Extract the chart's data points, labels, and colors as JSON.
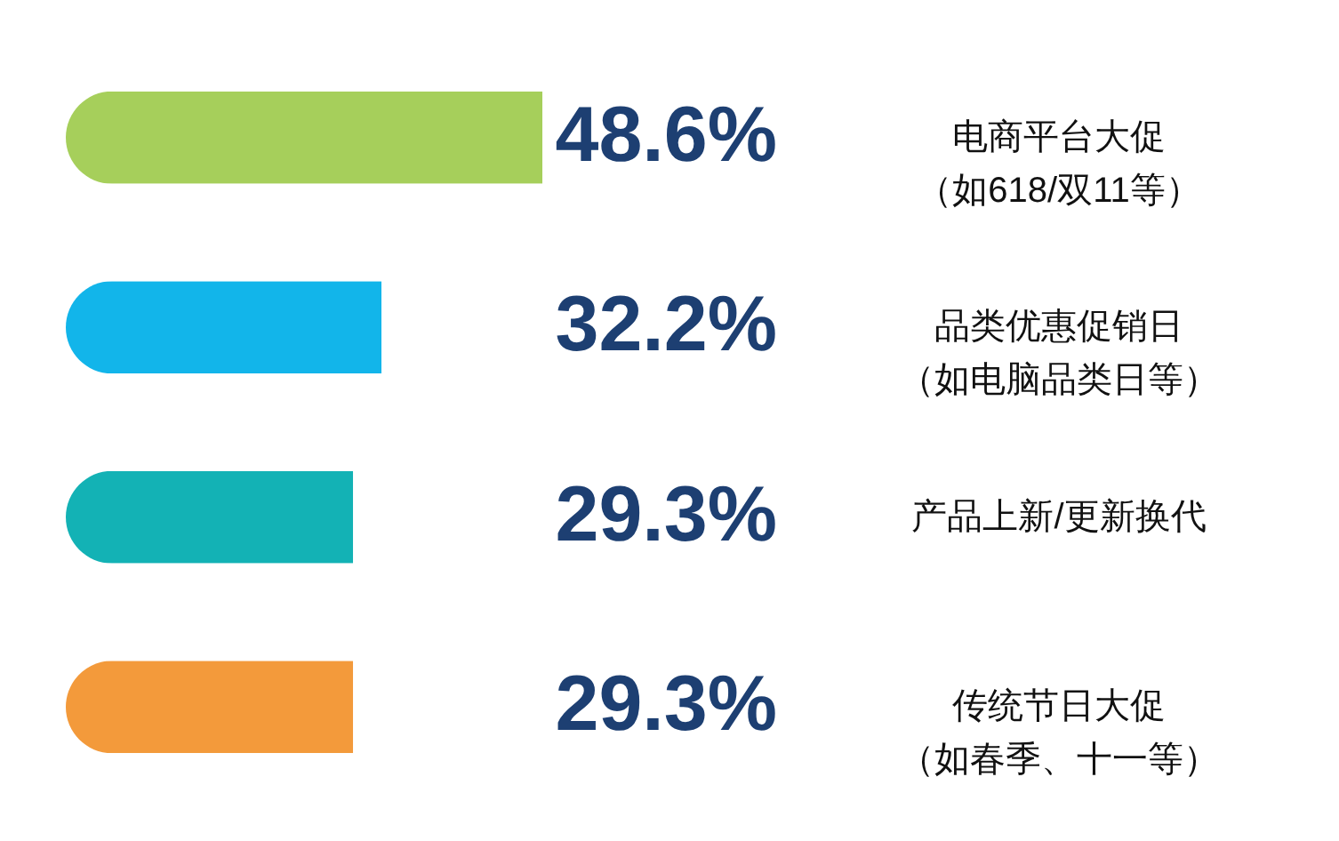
{
  "chart_data": {
    "type": "bar",
    "orientation": "horizontal",
    "categories": [
      "电商平台大促（如618/双11等）",
      "品类优惠促销日（如电脑品类日等）",
      "产品上新/更新换代",
      "传统节日大促（如春季、十一等）"
    ],
    "values": [
      48.6,
      32.2,
      29.3,
      29.3
    ],
    "colors": [
      "#a6cf5b",
      "#12b5ea",
      "#13b2b5",
      "#f39a3b"
    ],
    "value_labels": [
      "48.6%",
      "32.2%",
      "29.3%",
      "29.3%"
    ],
    "tick_labels": "y"
  }
}
